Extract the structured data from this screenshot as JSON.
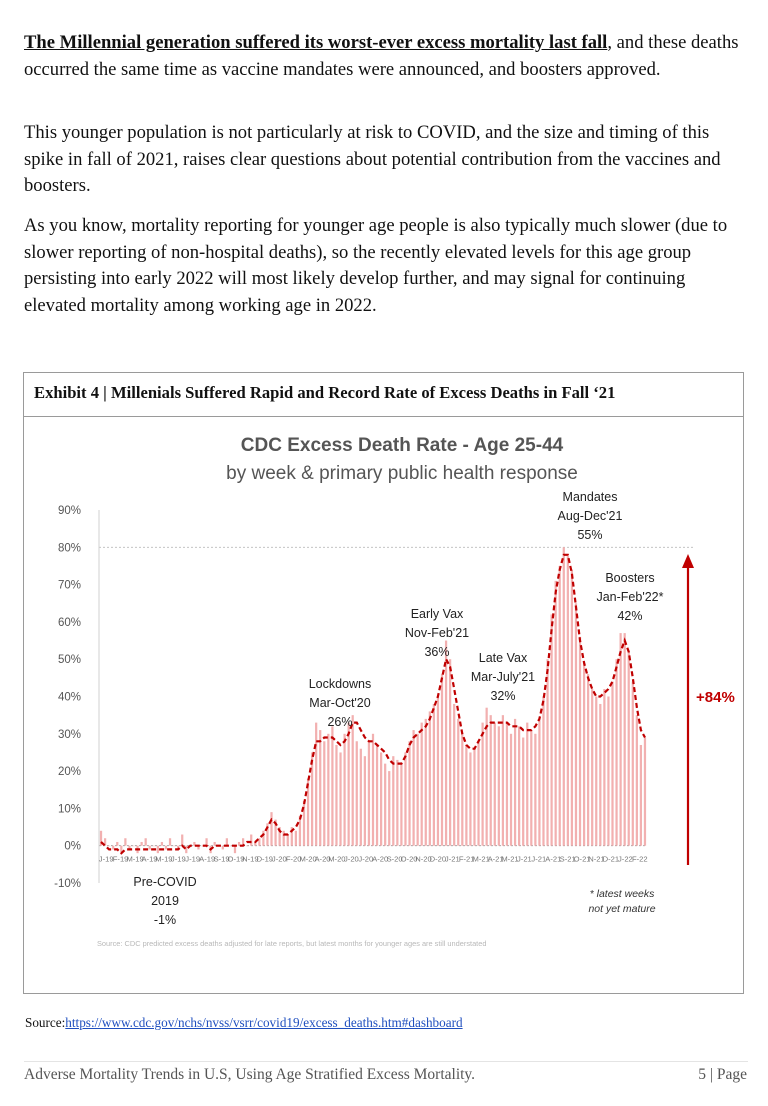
{
  "paragraphs": {
    "p1_lead": "The Millennial generation suffered its worst-ever excess mortality last fall",
    "p1_rest": ", and these deaths occurred the same time as vaccine mandates were announced, and boosters approved.",
    "p2": "This younger population is not particularly at risk to COVID, and the size and timing of this spike in fall of 2021, raises clear questions about potential contribution from the vaccines and boosters.",
    "p3": "As you know, mortality reporting for younger age people is also typically much slower (due to slower reporting of non-hospital deaths), so the recently elevated levels for this age group persisting into early 2022 will most likely develop further, and may signal for continuing elevated mortality among working age in 2022."
  },
  "exhibit": {
    "title": "Exhibit 4 | Millenials Suffered Rapid and Record Rate of Excess Deaths in Fall ‘21",
    "source_label": "Source:",
    "source_url": "https://www.cdc.gov/nchs/nvss/vsrr/covid19/excess_deaths.htm#dashboard"
  },
  "footer": {
    "left": "Adverse Mortality Trends in U.S, Using Age Stratified Excess Mortality.",
    "right": "5 | Page"
  },
  "colors": {
    "bar": "#f2b0b0",
    "line": "#c00000",
    "arrow": "#c00000"
  },
  "chart_data": {
    "type": "bar",
    "title": "CDC Excess Death Rate - Age 25-44",
    "subtitle": "by week & primary public health response",
    "xlabel": "",
    "ylabel": "",
    "ylim": [
      -10,
      90
    ],
    "yticks": [
      -10,
      0,
      10,
      20,
      30,
      40,
      50,
      60,
      70,
      80,
      90
    ],
    "ytick_labels": [
      "-10%",
      "0%",
      "10%",
      "20%",
      "30%",
      "40%",
      "50%",
      "60%",
      "70%",
      "80%",
      "90%"
    ],
    "xtick_labels": [
      "J-19",
      "F-19",
      "M-19",
      "A-19",
      "M-19",
      "J-19",
      "J-19",
      "A-19",
      "S-19",
      "O-19",
      "N-19",
      "D-19",
      "J-20",
      "F-20",
      "M-20",
      "A-20",
      "M-20",
      "J-20",
      "J-20",
      "A-20",
      "S-20",
      "O-20",
      "N-20",
      "D-20",
      "J-21",
      "F-21",
      "M-21",
      "A-21",
      "M-21",
      "J-21",
      "J-21",
      "A-21",
      "S-21",
      "O-21",
      "N-21",
      "D-21",
      "J-22",
      "F-22"
    ],
    "series": [
      {
        "name": "Weekly excess death rate",
        "style": "bars",
        "values": [
          4,
          2,
          0,
          -1,
          1,
          -2,
          2,
          -1,
          0,
          -2,
          1,
          2,
          -1,
          0,
          -2,
          1,
          -1,
          2,
          0,
          -1,
          3,
          -2,
          0,
          1,
          -1,
          0,
          2,
          -2,
          1,
          0,
          -1,
          2,
          0,
          -2,
          1,
          2,
          0,
          3,
          1,
          2,
          4,
          6,
          9,
          7,
          5,
          4,
          3,
          5,
          4,
          8,
          12,
          18,
          25,
          33,
          31,
          28,
          30,
          32,
          27,
          25,
          30,
          33,
          35,
          28,
          26,
          24,
          28,
          30,
          27,
          25,
          22,
          20,
          24,
          23,
          22,
          25,
          28,
          31,
          30,
          33,
          34,
          36,
          38,
          40,
          46,
          55,
          50,
          38,
          34,
          30,
          27,
          25,
          26,
          28,
          33,
          37,
          35,
          33,
          32,
          35,
          33,
          30,
          34,
          32,
          29,
          33,
          31,
          30,
          34,
          40,
          50,
          62,
          71,
          75,
          80,
          78,
          74,
          65,
          56,
          49,
          46,
          42,
          40,
          38,
          42,
          40,
          44,
          50,
          57,
          57,
          52,
          44,
          35,
          27,
          29
        ]
      },
      {
        "name": "Trend",
        "style": "dashed-line",
        "values": [
          1,
          0,
          -1,
          -1,
          -1,
          -2,
          -1,
          -1,
          -1,
          -1,
          -1,
          -1,
          -1,
          -1,
          -1,
          -1,
          -1,
          -1,
          -1,
          -1,
          0,
          -1,
          0,
          0,
          0,
          0,
          0,
          -1,
          0,
          0,
          0,
          0,
          0,
          0,
          0,
          0,
          1,
          1,
          1,
          2,
          3,
          5,
          7,
          6,
          4,
          3,
          3,
          4,
          5,
          7,
          11,
          17,
          23,
          28,
          28,
          29,
          29,
          29,
          28,
          27,
          28,
          30,
          33,
          33,
          31,
          29,
          28,
          28,
          27,
          26,
          25,
          23,
          22,
          22,
          22,
          24,
          27,
          29,
          30,
          31,
          32,
          34,
          37,
          40,
          45,
          50,
          48,
          42,
          36,
          30,
          27,
          26,
          26,
          28,
          30,
          32,
          33,
          33,
          33,
          33,
          33,
          32,
          32,
          32,
          31,
          31,
          31,
          32,
          34,
          39,
          47,
          58,
          68,
          74,
          78,
          78,
          73,
          64,
          55,
          49,
          45,
          42,
          40,
          40,
          41,
          42,
          44,
          48,
          52,
          55,
          52,
          45,
          37,
          31,
          29
        ]
      }
    ],
    "annotations": [
      {
        "label": "Pre-COVID",
        "period": "2019",
        "value": "-1%"
      },
      {
        "label": "Lockdowns",
        "period": "Mar-Oct'20",
        "value": "26%"
      },
      {
        "label": "Early Vax",
        "period": "Nov-Feb'21",
        "value": "36%"
      },
      {
        "label": "Late Vax",
        "period": "Mar-July'21",
        "value": "32%"
      },
      {
        "label": "Mandates",
        "period": "Aug-Dec'21",
        "value": "55%"
      },
      {
        "label": "Boosters",
        "period": "Jan-Feb'22*",
        "value": "42%"
      }
    ],
    "peak_change": "+84%",
    "note_line1": "* latest weeks",
    "note_line2": "not yet mature",
    "footnote": "Source: CDC predicted excess deaths adjusted for late reports, but latest months for younger ages are still understated"
  }
}
